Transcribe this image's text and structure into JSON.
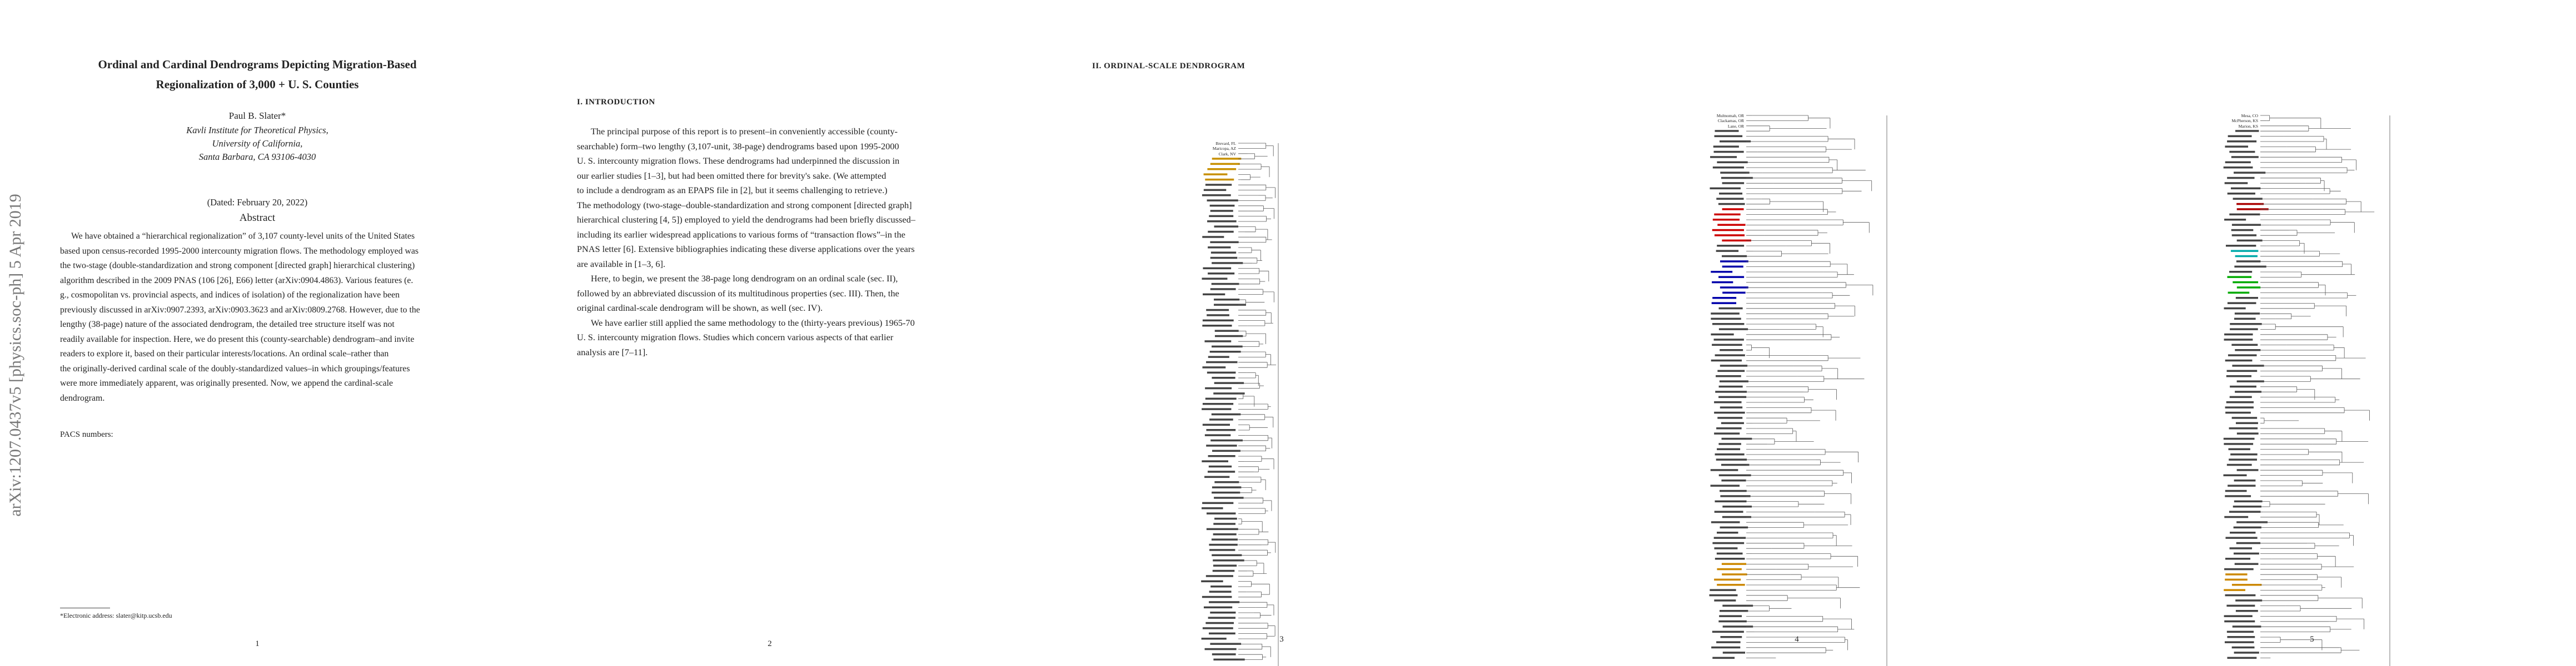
{
  "stamp": "arXiv:1207.0437v5  [physics.soc-ph]  5 Apr 2019",
  "page1": {
    "title_lines": [
      "Ordinal and Cardinal Dendrograms Depicting Migration-Based",
      "Regionalization of 3,000 + U. S. Counties"
    ],
    "author": "Paul B. Slater*",
    "affiliation_lines": [
      "Kavli Institute for Theoretical Physics,",
      "University of California,",
      "Santa Barbara, CA 93106-4030"
    ],
    "dated": "(Dated: February 20, 2022)",
    "abstract_heading": "Abstract",
    "abstract_lines": [
      "We have obtained a “hierarchical regionalization” of 3,107 county-level units of the United States",
      "based upon census-recorded 1995-2000 intercounty migration flows. The methodology employed was",
      "the two-stage (double-standardization and strong component [directed graph] hierarchical clustering)",
      "algorithm described in the 2009 PNAS (106 [26], E66) letter (arXiv:0904.4863). Various features (e.",
      "g., cosmopolitan vs. provincial aspects, and indices of isolation) of the regionalization have been",
      "previously discussed in arXiv:0907.2393, arXiv:0903.3623 and arXiv:0809.2768. However, due to the",
      "lengthy (38-page) nature of the associated dendrogram, the detailed tree structure itself was not",
      "readily available for inspection. Here, we do present this (county-searchable) dendrogram–and invite",
      "readers to explore it, based on their particular interests/locations. An ordinal scale–rather than",
      "the originally-derived cardinal scale of the doubly-standardized values–in which groupings/features",
      "were more immediately apparent, was originally presented. Now, we append the cardinal-scale",
      "dendrogram."
    ],
    "pacs": "PACS numbers:",
    "footnote": "*Electronic address: slater@kitp.ucsb.edu",
    "number": "1"
  },
  "page2": {
    "heading": "I.   INTRODUCTION",
    "paragraphs": [
      [
        "The principal purpose of this report is to present–in conveniently accessible (county-",
        "searchable) form–two lengthy (3,107-unit, 38-page) dendrograms based upon 1995-2000",
        "U. S. intercounty migration flows. These dendrograms had underpinned the discussion in",
        "our earlier studies [1–3], but had been omitted there for brevity's sake. (We attempted",
        "to include a dendrogram as an EPAPS file in [2], but it seems challenging to retrieve.)",
        "The methodology (two-stage–double-standardization and strong component [directed graph]",
        "hierarchical clustering [4, 5]) employed to yield the dendrograms had been briefly discussed–",
        "including its earlier widespread applications to various forms of “transaction flows”–in the",
        "PNAS letter [6]. Extensive bibliographies indicating these diverse applications over the years",
        "are available in [1–3, 6]."
      ],
      [
        "Here, to begin, we present the 38-page long dendrogram on an ordinal scale (sec. II),",
        "followed by an abbreviated discussion of its multitudinous properties (sec. III). Then, the",
        "original cardinal-scale dendrogram will be shown, as well (sec. IV)."
      ],
      [
        "We have earlier still applied the same methodology to the (thirty-years previous) 1965-70",
        "U. S. intercounty migration flows. Studies which concern various aspects of that earlier",
        "analysis are [7–11]."
      ]
    ],
    "number": "2"
  },
  "page3": {
    "heading": "II.   ORDINAL-SCALE DENDROGRAM",
    "labels": [
      "Brevard, FL",
      "Maricopa, AZ",
      "Clark, NV"
    ],
    "number": "3"
  },
  "page4": {
    "labels": [
      "Multnomah, OR",
      "Clackamas, OR",
      "Lane, OR"
    ],
    "number": "4"
  },
  "page5": {
    "labels": [
      "Mesa, CO",
      "McPherson, KS",
      "Marion, KS"
    ],
    "number": "5"
  }
}
